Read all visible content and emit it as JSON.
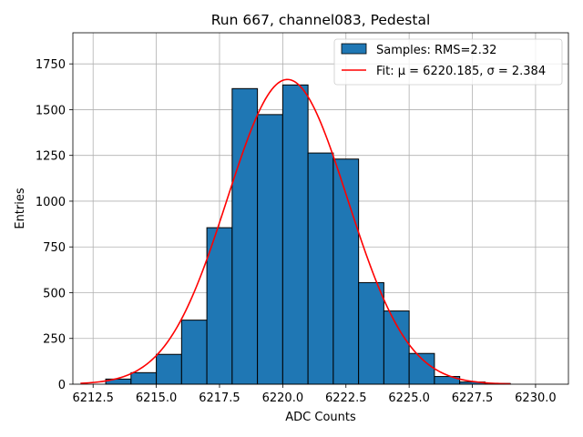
{
  "chart_data": {
    "type": "bar",
    "title": "Run 667, channel083, Pedestal",
    "xlabel": "ADC Counts",
    "ylabel": "Entries",
    "xlim": [
      6211.7,
      6231.3
    ],
    "ylim": [
      0,
      1920
    ],
    "xticks": [
      6212.5,
      6215.0,
      6217.5,
      6220.0,
      6222.5,
      6225.0,
      6227.5,
      6230.0
    ],
    "xtick_labels": [
      "6212.5",
      "6215.0",
      "6217.5",
      "6220.0",
      "6222.5",
      "6225.0",
      "6227.5",
      "6230.0"
    ],
    "yticks": [
      0,
      250,
      500,
      750,
      1000,
      1250,
      1500,
      1750
    ],
    "ytick_labels": [
      "0",
      "250",
      "500",
      "750",
      "1000",
      "1250",
      "1500",
      "1750"
    ],
    "grid": true,
    "legend_position": "top-right",
    "histogram": {
      "name": "Samples: RMS=2.32",
      "color": "#1f77b4",
      "edge_color": "#000000",
      "bins": [
        {
          "x0": 6213,
          "x1": 6214,
          "count": 28
        },
        {
          "x0": 6214,
          "x1": 6215,
          "count": 63
        },
        {
          "x0": 6215,
          "x1": 6216,
          "count": 163
        },
        {
          "x0": 6216,
          "x1": 6217,
          "count": 350
        },
        {
          "x0": 6217,
          "x1": 6218,
          "count": 855
        },
        {
          "x0": 6218,
          "x1": 6219,
          "count": 1615
        },
        {
          "x0": 6219,
          "x1": 6220,
          "count": 1473
        },
        {
          "x0": 6220,
          "x1": 6221,
          "count": 1635
        },
        {
          "x0": 6221,
          "x1": 6222,
          "count": 1263
        },
        {
          "x0": 6222,
          "x1": 6223,
          "count": 1230
        },
        {
          "x0": 6223,
          "x1": 6224,
          "count": 555
        },
        {
          "x0": 6224,
          "x1": 6225,
          "count": 400
        },
        {
          "x0": 6225,
          "x1": 6226,
          "count": 168
        },
        {
          "x0": 6226,
          "x1": 6227,
          "count": 42
        },
        {
          "x0": 6227,
          "x1": 6228,
          "count": 12
        },
        {
          "x0": 6228,
          "x1": 6229,
          "count": 4
        }
      ]
    },
    "fit": {
      "name": "Fit: μ = 6220.185, σ = 2.384",
      "color": "#ff0000",
      "mu": 6220.185,
      "sigma": 2.384,
      "amplitude": 1665,
      "x_range": [
        6212.0,
        6229.0
      ]
    }
  }
}
